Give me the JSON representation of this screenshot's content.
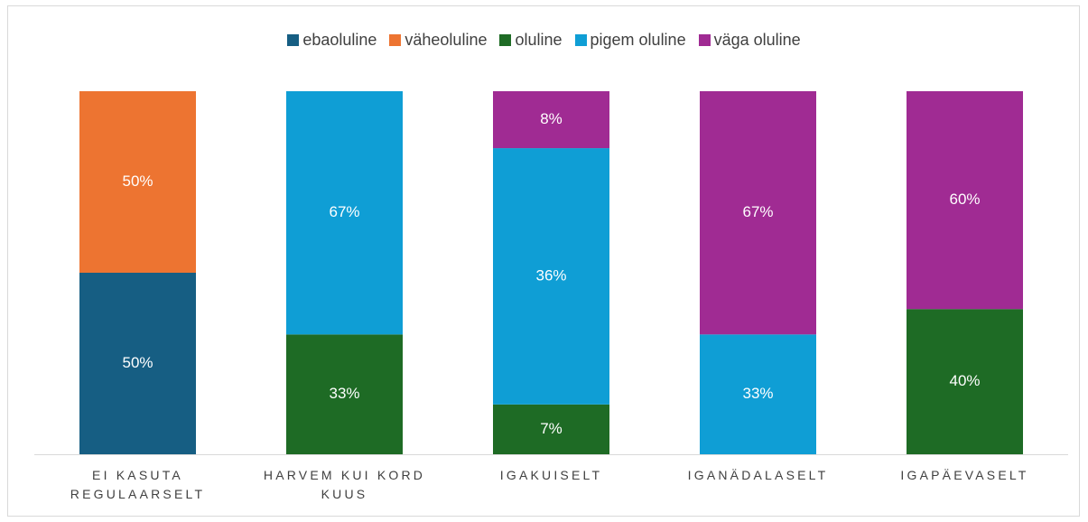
{
  "chart_data": {
    "type": "bar",
    "stacking": "percent",
    "categories": [
      "EI KASUTA REGULAARSELT",
      "HARVEM KUI KORD KUUS",
      "IGAKUISELT",
      "IGANÄDALASELT",
      "IGAPÄEVASELT"
    ],
    "series": [
      {
        "name": "ebaoluline",
        "color": "#165e83",
        "values": [
          50,
          null,
          null,
          null,
          null
        ],
        "value_labels": [
          "50%",
          null,
          null,
          null,
          null
        ]
      },
      {
        "name": "väheoluline",
        "color": "#ed7431",
        "values": [
          50,
          null,
          null,
          null,
          null
        ],
        "value_labels": [
          "50%",
          null,
          null,
          null,
          null
        ]
      },
      {
        "name": "oluline",
        "color": "#1e6b25",
        "values": [
          null,
          33,
          7,
          null,
          40
        ],
        "value_labels": [
          null,
          "33%",
          "7%",
          null,
          "40%"
        ]
      },
      {
        "name": "pigem oluline",
        "color": "#0f9ed5",
        "values": [
          null,
          67,
          36,
          33,
          null
        ],
        "value_labels": [
          null,
          "67%",
          "36%",
          "33%",
          null
        ]
      },
      {
        "name": "väga oluline",
        "color": "#a02b93",
        "values": [
          null,
          null,
          8,
          67,
          60
        ],
        "value_labels": [
          null,
          null,
          "8%",
          "67%",
          "60%"
        ]
      }
    ],
    "legend": "top"
  }
}
